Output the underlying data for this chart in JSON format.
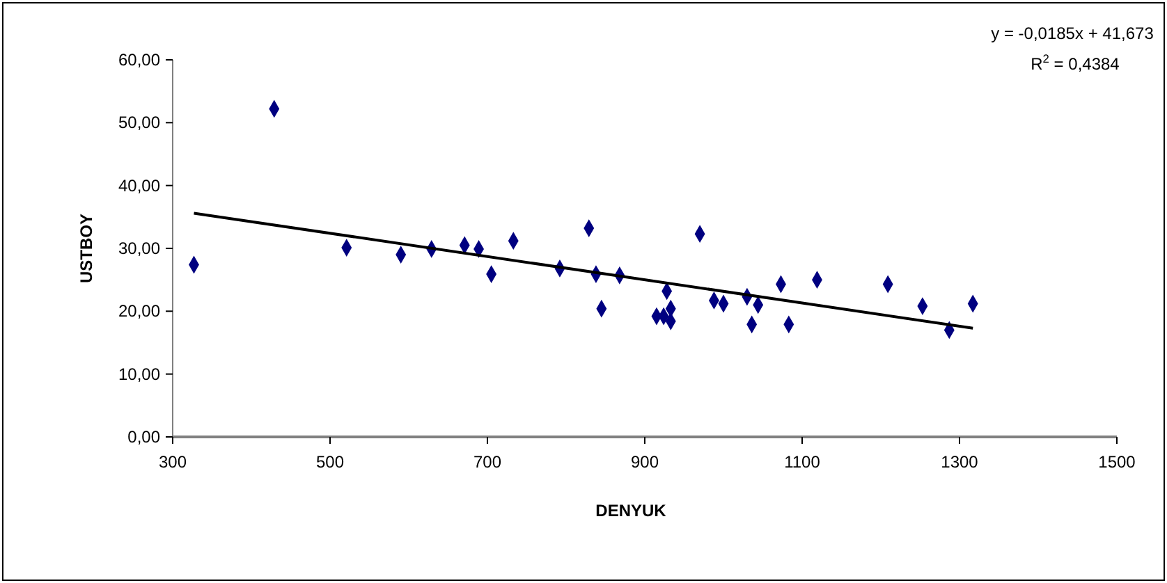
{
  "chart_data": {
    "type": "scatter",
    "xlabel": "DENYUK",
    "ylabel": "USTBOY",
    "annotations": [
      "y = -0,0185x + 41,673",
      "R$^{2}$ = 0,4384"
    ],
    "xlim": [
      300,
      1500
    ],
    "xticks": [
      300,
      500,
      700,
      900,
      1100,
      1300,
      1500
    ],
    "ylim": [
      0,
      60
    ],
    "yticks": [
      {
        "value": 0,
        "label": "0,00"
      },
      {
        "value": 10,
        "label": "10,00"
      },
      {
        "value": 20,
        "label": "20,00"
      },
      {
        "value": 30,
        "label": "30,00"
      },
      {
        "value": 40,
        "label": "40,00"
      },
      {
        "value": 50,
        "label": "50,00"
      },
      {
        "value": 60,
        "label": "60,00"
      }
    ],
    "grid": false,
    "series": [
      {
        "color": "#000080",
        "marker": "diamond",
        "x": [
          327,
          429,
          521,
          590,
          629,
          671,
          689,
          733,
          705,
          792,
          838,
          829,
          845,
          868,
          928,
          915,
          924,
          933,
          933,
          970,
          988,
          1000,
          1030,
          1036,
          1044,
          1073,
          1083,
          1119,
          1209,
          1253,
          1287,
          1317
        ],
        "values": [
          27.4,
          52.2,
          30.1,
          29.0,
          29.9,
          30.5,
          29.9,
          31.2,
          25.9,
          26.8,
          25.9,
          33.2,
          20.4,
          25.7,
          23.2,
          19.2,
          19.2,
          20.4,
          18.4,
          32.3,
          21.7,
          21.2,
          22.3,
          17.9,
          21.0,
          24.3,
          17.9,
          25.0,
          24.3,
          20.8,
          17.0,
          21.2
        ]
      },
      {
        "type": "line",
        "color": "#000000",
        "marker": "none",
        "line_style": "solid",
        "x": [
          327,
          1317
        ],
        "values": [
          35.6,
          17.3
        ]
      }
    ]
  }
}
